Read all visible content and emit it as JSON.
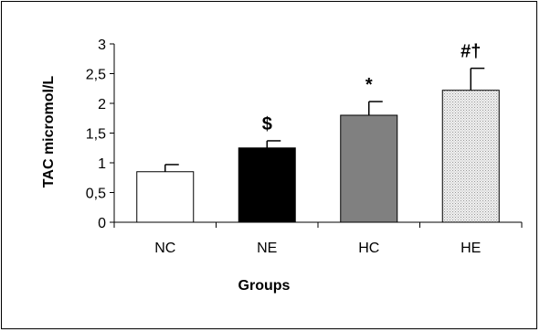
{
  "chart_data": {
    "type": "bar",
    "title": "",
    "xlabel": "Groups",
    "ylabel": "TAC micromol/L",
    "ylim": [
      0,
      3
    ],
    "yticks": [
      "0",
      "0,5",
      "1",
      "1,5",
      "2",
      "2,5",
      "3"
    ],
    "categories": [
      "NC",
      "NE",
      "HC",
      "HE"
    ],
    "values": [
      0.85,
      1.25,
      1.8,
      2.22
    ],
    "errors": [
      0.12,
      0.12,
      0.23,
      0.37
    ],
    "annotations": [
      "",
      "$",
      "*",
      "#†"
    ],
    "bar_fills": [
      "#ffffff",
      "#000000",
      "#808080",
      "dotted-light-gray"
    ],
    "grid": false,
    "legend": "none"
  }
}
